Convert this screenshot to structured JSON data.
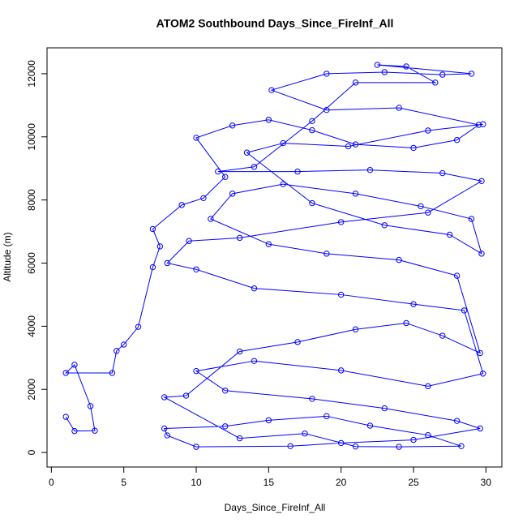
{
  "chart_data": {
    "type": "line",
    "markers": true,
    "title": "ATOM2 Southbound Days_Since_FireInf_All",
    "x_label": "Days_Since_FireInf_All",
    "y_label": "Altitude (m)",
    "color": "#0000ff",
    "xlim": [
      -0.3,
      31.1
    ],
    "ylim": [
      -460,
      12820
    ],
    "xticks": [
      0,
      5,
      10,
      15,
      20,
      25,
      30
    ],
    "yticks": [
      0,
      2000,
      4000,
      6000,
      8000,
      10000,
      12000
    ],
    "x": [
      1.0,
      1.6,
      3.0,
      2.7,
      1.6,
      1.0,
      4.2,
      4.5,
      5.0,
      6.0,
      7.0,
      7.5,
      7.0,
      9.0,
      10.5,
      12.0,
      10.0,
      12.5,
      15.0,
      18.0,
      21.0,
      25.0,
      28.0,
      29.5,
      24.0,
      19.0,
      15.2,
      19.0,
      23.0,
      27.0,
      29.0,
      22.5,
      24.5,
      26.5,
      21.0,
      18.0,
      14.0,
      11.5,
      17.0,
      22.0,
      27.0,
      29.7,
      26.0,
      20.0,
      13.0,
      9.5,
      8.0,
      10.0,
      14.0,
      20.0,
      25.0,
      28.5,
      29.8,
      26.0,
      20.0,
      14.0,
      10.0,
      12.0,
      18.0,
      23.0,
      28.0,
      29.6,
      25.0,
      20.0,
      16.5,
      10.0,
      8.0,
      7.8,
      12.0,
      15.0,
      19.0,
      22.0,
      26.0,
      28.3,
      24.0,
      21.0,
      17.5,
      13.0,
      7.8,
      9.3,
      13.0,
      17.0,
      21.0,
      24.5,
      27.0,
      29.6,
      28.0,
      24.0,
      19.0,
      15.0,
      11.0,
      12.5,
      16.0,
      21.0,
      25.5,
      29.0,
      29.7,
      27.5,
      23.0,
      18.0,
      13.5,
      16.0,
      20.5,
      26.0,
      29.8
    ],
    "values": [
      1130,
      680,
      690,
      1470,
      2780,
      2520,
      2520,
      3220,
      3420,
      3980,
      5870,
      6530,
      7080,
      7840,
      8060,
      8730,
      9970,
      10360,
      10540,
      10210,
      9760,
      9650,
      9900,
      10380,
      10920,
      10850,
      11480,
      12000,
      12050,
      11970,
      12000,
      12280,
      12230,
      11720,
      11720,
      10500,
      9050,
      8900,
      8900,
      8950,
      8850,
      8600,
      7600,
      7300,
      6800,
      6700,
      6000,
      5800,
      5200,
      5000,
      4700,
      4500,
      2500,
      2100,
      2600,
      2900,
      2580,
      1960,
      1700,
      1400,
      1000,
      760,
      400,
      300,
      200,
      180,
      540,
      760,
      830,
      1020,
      1150,
      850,
      550,
      200,
      180,
      190,
      600,
      450,
      1750,
      1800,
      3200,
      3500,
      3900,
      4100,
      3700,
      3150,
      5600,
      6100,
      6300,
      6600,
      7400,
      8200,
      8500,
      8200,
      7800,
      7400,
      6300,
      6900,
      7200,
      7900,
      9500,
      9800,
      9700,
      10200,
      10400
    ]
  }
}
